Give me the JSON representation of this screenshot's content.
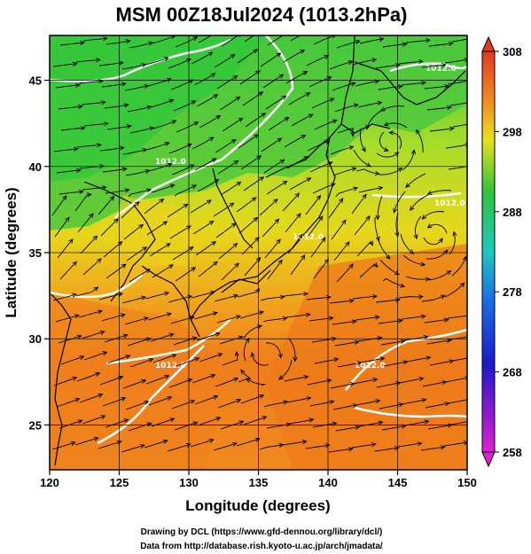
{
  "title": "MSM 00Z18Jul2024 (1013.2hPa)",
  "x_axis": {
    "label": "Longitude (degrees)",
    "range": [
      120,
      150
    ],
    "ticks": [
      "120",
      "125",
      "130",
      "135",
      "140",
      "145",
      "150"
    ]
  },
  "y_axis": {
    "label": "Latitude  (degrees)",
    "range": [
      22.4,
      47.6
    ],
    "ticks": [
      "25",
      "30",
      "35",
      "40",
      "45"
    ]
  },
  "colorbar": {
    "range": [
      258,
      308
    ],
    "ticks": [
      "308",
      "298",
      "288",
      "278",
      "268",
      "258"
    ]
  },
  "contour_labels": [
    "1012.0",
    "1012.0",
    "1012.0",
    "1012.0",
    "1012.0",
    "1012.0"
  ],
  "credits": {
    "line1": "Drawing by DCL (https://www.gfd-dennou.org/library/dcl/)",
    "line2": "Data from http://database.rish.kyoto-u.ac.jp/arch/jmadata/"
  },
  "colors": {
    "warm_sea": "#ee7a1a",
    "land_field": "#d8e01c",
    "north_green": "#44c844",
    "contour": "#ffffff",
    "coast": "#000000"
  }
}
